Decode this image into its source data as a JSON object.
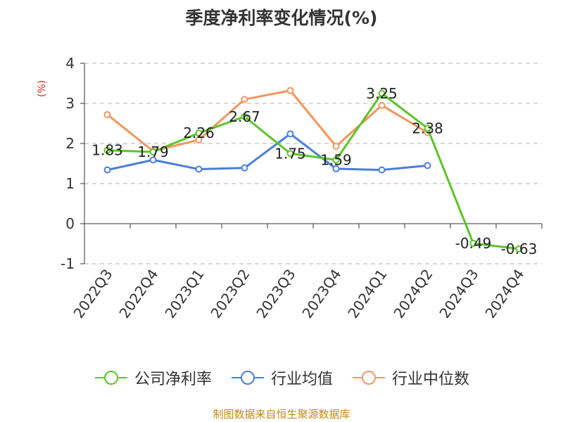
{
  "chart_data": {
    "type": "line",
    "title": "季度净利率变化情况(%)",
    "ylabel": "(%)",
    "xlabel": "",
    "categories": [
      "2022Q3",
      "2022Q4",
      "2023Q1",
      "2023Q2",
      "2023Q3",
      "2023Q4",
      "2024Q1",
      "2024Q2",
      "2024Q3",
      "2024Q4"
    ],
    "ylim": [
      -1,
      4
    ],
    "yticks": [
      -1,
      0,
      1,
      2,
      3,
      4
    ],
    "grid": true,
    "legend_position": "bottom",
    "series": [
      {
        "name": "公司净利率",
        "color": "#5bc628",
        "values": [
          1.83,
          1.79,
          2.26,
          2.67,
          1.75,
          1.59,
          3.25,
          2.38,
          -0.49,
          -0.63
        ],
        "labels": [
          "1.83",
          "1.79",
          "2.26",
          "2.67",
          "1.75",
          "1.59",
          "3.25",
          "2.38",
          "-0.49",
          "-0.63"
        ]
      },
      {
        "name": "行业均值",
        "color": "#4a7fd8",
        "values": [
          1.34,
          1.59,
          1.36,
          1.39,
          2.24,
          1.37,
          1.34,
          1.45,
          null,
          null
        ]
      },
      {
        "name": "行业中位数",
        "color": "#f4955e",
        "values": [
          2.72,
          1.81,
          2.09,
          3.1,
          3.32,
          1.93,
          2.95,
          2.27,
          null,
          null
        ]
      }
    ]
  },
  "source_note": "制图数据来自恒生聚源数据库"
}
